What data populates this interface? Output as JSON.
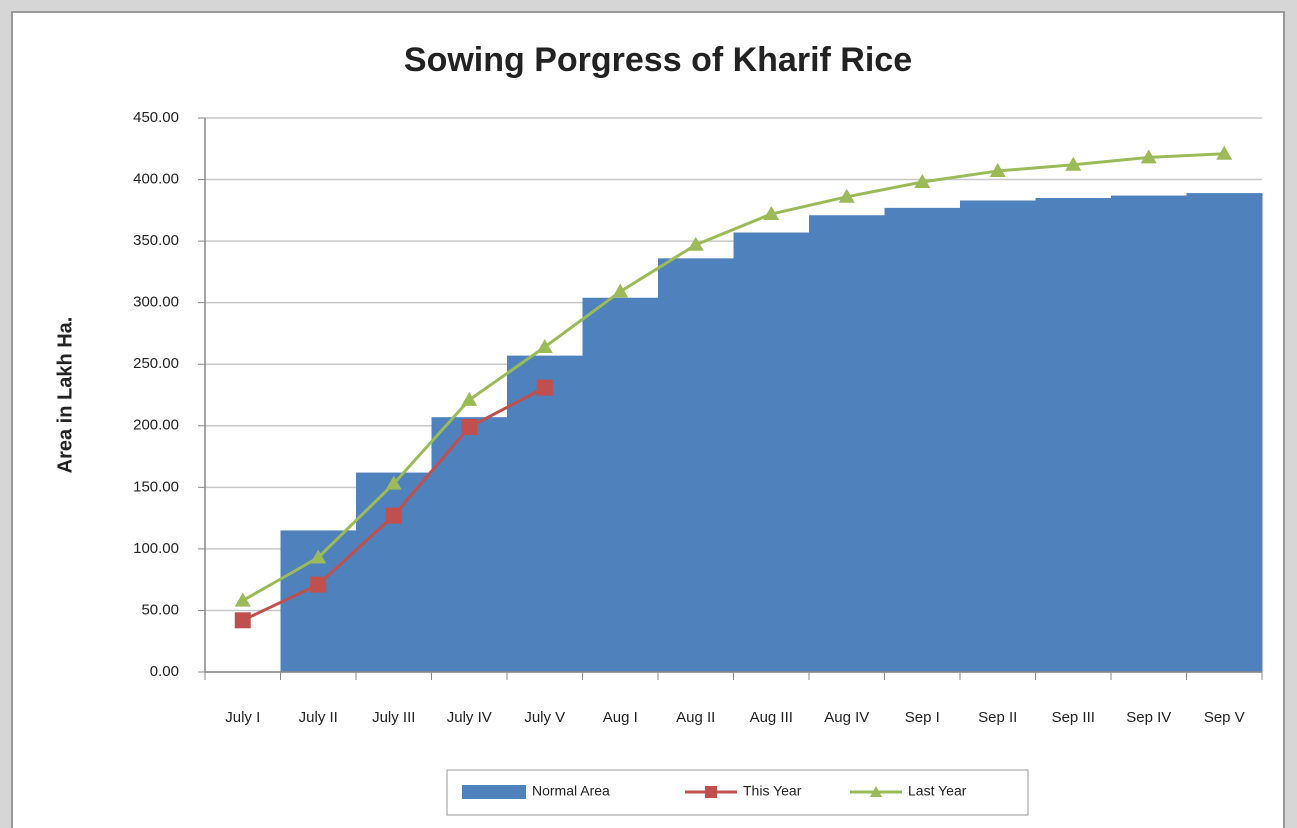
{
  "chart_data": {
    "type": "combo",
    "title": "Sowing Porgress of Kharif  Rice",
    "y_label": "Area in Lakh Ha.",
    "categories": [
      "July I",
      "July II",
      "July III",
      "July IV",
      "July V",
      "Aug I",
      "Aug II",
      "Aug III",
      "Aug IV",
      "Sep I",
      "Sep II",
      "Sep III",
      "Sep IV",
      "Sep V"
    ],
    "series": [
      {
        "name": "Normal Area",
        "type": "area",
        "color": "#4f81bd",
        "values": [
          0,
          115,
          162,
          207,
          257,
          304,
          336,
          357,
          371,
          377,
          383,
          385,
          387,
          389
        ]
      },
      {
        "name": "This Year",
        "type": "line",
        "marker": "square",
        "color": "#c0504d",
        "values": [
          42,
          71,
          127,
          199,
          231,
          null,
          null,
          null,
          null,
          null,
          null,
          null,
          null,
          null
        ]
      },
      {
        "name": "Last Year",
        "type": "line",
        "marker": "triangle",
        "color": "#9bbb59",
        "values": [
          58,
          93,
          153,
          221,
          264,
          309,
          347,
          372,
          386,
          398,
          407,
          412,
          418,
          421
        ]
      }
    ],
    "ylim": [
      0,
      450
    ],
    "yticks": [
      {
        "value": 0,
        "label": "0.00"
      },
      {
        "value": 50,
        "label": "50.00"
      },
      {
        "value": 100,
        "label": "100.00"
      },
      {
        "value": 150,
        "label": "150.00"
      },
      {
        "value": 200,
        "label": "200.00"
      },
      {
        "value": 250,
        "label": "250.00"
      },
      {
        "value": 300,
        "label": "300.00"
      },
      {
        "value": 350,
        "label": "350.00"
      },
      {
        "value": 400,
        "label": "400.00"
      },
      {
        "value": 450,
        "label": "450.00"
      }
    ],
    "grid": true,
    "legend": "bottom"
  }
}
